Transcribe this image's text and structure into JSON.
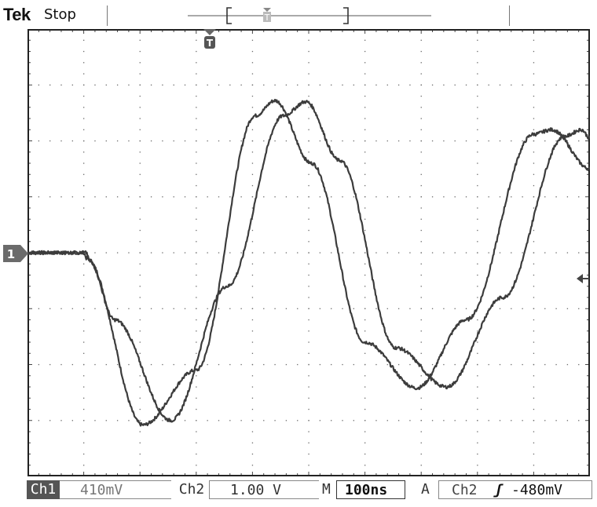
{
  "header": {
    "brand": "Tek",
    "acquisition_state": "Stop",
    "trigger_position_glyph": "T"
  },
  "channel_marker": {
    "label": "1",
    "icon": "channel-1-ground-marker"
  },
  "status": {
    "ch1": {
      "label": "Ch1",
      "scale": "410mV"
    },
    "ch2": {
      "label": "Ch2",
      "scale": "1.00 V"
    },
    "timebase": {
      "label": "M",
      "value": "100ns"
    },
    "trigger": {
      "mode": "A",
      "source": "Ch2",
      "slope_glyph": "ʃ",
      "level": "-480mV"
    }
  },
  "colors": {
    "trace": "#3c3c3c",
    "grid_dot": "#6a6a6a",
    "frame": "#222222",
    "label_bg": "#555555"
  },
  "chart_data": {
    "type": "line",
    "grid": true,
    "divisions": {
      "x": 10,
      "y": 8
    },
    "x_unit": "div",
    "y_unit": "div",
    "xlim": [
      0,
      10
    ],
    "ylim": [
      -4,
      4
    ],
    "series": [
      {
        "points": [
          [
            0,
            0.0
          ],
          [
            1.0,
            0.0
          ],
          [
            1.05,
            -0.1
          ],
          [
            2.05,
            -3.08
          ],
          [
            3.0,
            -2.1
          ],
          [
            4.05,
            2.45
          ],
          [
            4.4,
            2.72
          ],
          [
            5.05,
            1.6
          ],
          [
            6.0,
            -1.6
          ],
          [
            6.92,
            -2.42
          ],
          [
            7.8,
            -1.2
          ],
          [
            9.0,
            2.12
          ],
          [
            9.32,
            2.2
          ],
          [
            10.0,
            1.5
          ]
        ]
      },
      {
        "points": [
          [
            0,
            0.0
          ],
          [
            1.05,
            0.0
          ],
          [
            1.1,
            -0.15
          ],
          [
            1.55,
            -1.2
          ],
          [
            2.55,
            -3.0
          ],
          [
            3.55,
            -0.6
          ],
          [
            4.55,
            2.45
          ],
          [
            4.95,
            2.7
          ],
          [
            5.55,
            1.65
          ],
          [
            6.55,
            -1.7
          ],
          [
            7.45,
            -2.4
          ],
          [
            8.45,
            -0.8
          ],
          [
            9.55,
            2.08
          ],
          [
            9.85,
            2.2
          ],
          [
            10.0,
            2.05
          ]
        ]
      }
    ]
  }
}
